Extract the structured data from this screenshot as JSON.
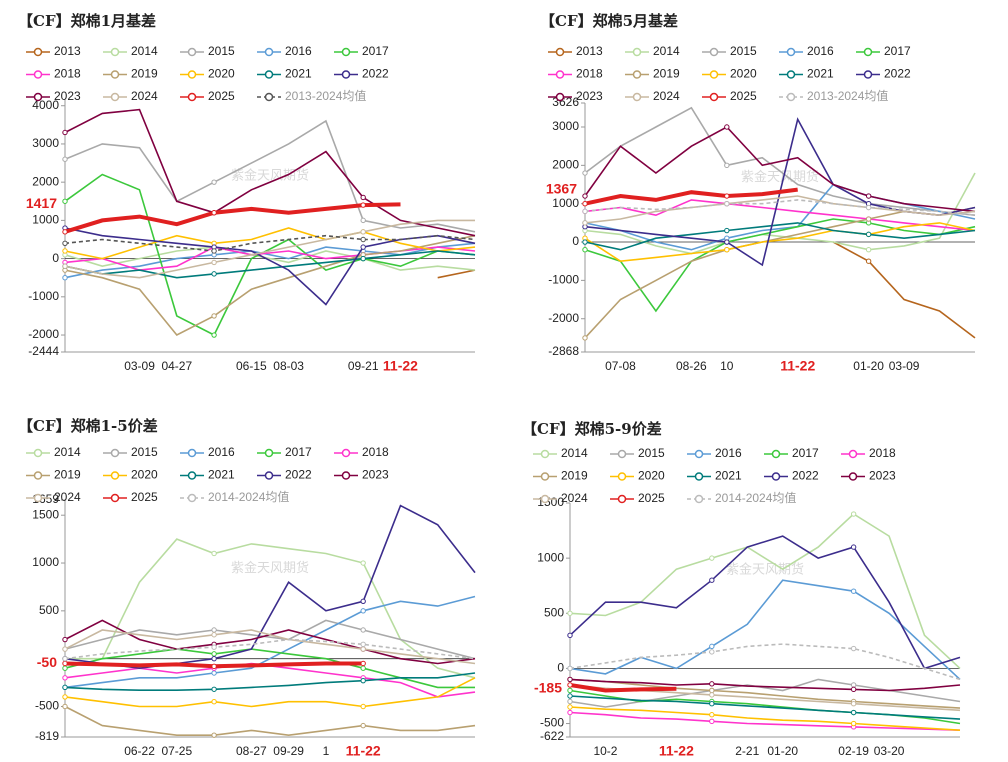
{
  "chart_data": [
    {
      "type": "line",
      "title": "【CF】郑棉1月基差",
      "watermark": "紫金天风期货",
      "current_value": 1417,
      "highlight_category_index": 9,
      "categories": [
        null,
        null,
        "03-09",
        "04-27",
        null,
        "06-15",
        "08-03",
        null,
        "09-21",
        "11-22",
        null,
        null
      ],
      "ylim": [
        -2444,
        4150
      ],
      "yticks": [
        4000,
        3000,
        2000,
        1000,
        0,
        -1000,
        -2000,
        -2444
      ],
      "series": [
        {
          "name": "2013",
          "color": "#b5651d",
          "values": [
            null,
            null,
            null,
            null,
            null,
            null,
            null,
            null,
            null,
            null,
            -500,
            -300
          ]
        },
        {
          "name": "2014",
          "color": "#b8dca0",
          "values": [
            100,
            -200,
            0,
            200,
            300,
            100,
            -100,
            200,
            0,
            -300,
            -200,
            -300
          ]
        },
        {
          "name": "2015",
          "color": "#a9a9a9",
          "values": [
            2600,
            3000,
            2900,
            1500,
            2000,
            2500,
            3000,
            3600,
            1000,
            800,
            900,
            700
          ]
        },
        {
          "name": "2016",
          "color": "#5b9bd5",
          "values": [
            -500,
            -300,
            -200,
            0,
            100,
            200,
            0,
            300,
            200,
            100,
            300,
            400
          ]
        },
        {
          "name": "2017",
          "color": "#3cc83c",
          "values": [
            1500,
            2200,
            1800,
            -1500,
            -2000,
            0,
            500,
            -300,
            0,
            -200,
            200,
            100
          ]
        },
        {
          "name": "2018",
          "color": "#ff33cc",
          "values": [
            -100,
            0,
            -300,
            -200,
            300,
            100,
            200,
            0,
            100,
            200,
            300,
            200
          ]
        },
        {
          "name": "2019",
          "color": "#b8a070",
          "values": [
            -300,
            -500,
            -800,
            -2000,
            -1500,
            -800,
            -500,
            -200,
            100,
            200,
            400,
            600
          ]
        },
        {
          "name": "2020",
          "color": "#ffc000",
          "values": [
            200,
            0,
            300,
            600,
            400,
            500,
            800,
            500,
            700,
            400,
            200,
            300
          ]
        },
        {
          "name": "2021",
          "color": "#007b7b",
          "values": [
            -200,
            -400,
            -300,
            -500,
            -400,
            -300,
            -200,
            -100,
            0,
            100,
            200,
            100
          ]
        },
        {
          "name": "2022",
          "color": "#3c2d8c",
          "values": [
            800,
            600,
            500,
            400,
            300,
            200,
            -300,
            -1200,
            300,
            500,
            600,
            400
          ]
        },
        {
          "name": "2023",
          "color": "#800040",
          "values": [
            3300,
            3800,
            3900,
            1500,
            1200,
            1800,
            2200,
            2800,
            1600,
            1000,
            800,
            600
          ]
        },
        {
          "name": "2024",
          "color": "#c8b8a0",
          "values": [
            -200,
            -400,
            -500,
            -300,
            -100,
            100,
            300,
            500,
            700,
            900,
            1000,
            1000
          ]
        },
        {
          "name": "2025",
          "color": "#e02020",
          "width": 4,
          "values": [
            700,
            1000,
            1100,
            900,
            1200,
            1300,
            1200,
            1300,
            1400,
            1417,
            null,
            null
          ]
        },
        {
          "name": "2013-2024均值",
          "color": "#555555",
          "dashed": true,
          "values": [
            400,
            500,
            400,
            300,
            200,
            400,
            500,
            600,
            500,
            500,
            600,
            500
          ]
        }
      ]
    },
    {
      "type": "line",
      "title": "【CF】郑棉5月基差",
      "watermark": "紫金天风期货",
      "current_value": 1367,
      "highlight_category_index": 6,
      "categories": [
        null,
        "07-08",
        null,
        "08-26",
        "10",
        null,
        "11-22",
        null,
        "01-20",
        "03-09",
        null,
        null
      ],
      "ylim": [
        -2868,
        3626
      ],
      "yticks": [
        3626,
        3000,
        2000,
        1000,
        0,
        -1000,
        -2000,
        -2868
      ],
      "series": [
        {
          "name": "2013",
          "color": "#b5651d",
          "values": [
            null,
            null,
            null,
            null,
            null,
            null,
            null,
            0,
            -500,
            -1500,
            -1800,
            -2500
          ]
        },
        {
          "name": "2014",
          "color": "#b8dca0",
          "values": [
            300,
            200,
            -100,
            -300,
            0,
            200,
            100,
            0,
            -200,
            -100,
            100,
            1800
          ]
        },
        {
          "name": "2015",
          "color": "#a9a9a9",
          "values": [
            1800,
            2500,
            3000,
            3500,
            2000,
            2200,
            1500,
            1200,
            1000,
            900,
            800,
            700
          ]
        },
        {
          "name": "2016",
          "color": "#5b9bd5",
          "values": [
            500,
            300,
            0,
            -200,
            100,
            300,
            400,
            1500,
            1200,
            1000,
            800,
            600
          ]
        },
        {
          "name": "2017",
          "color": "#3cc83c",
          "values": [
            -200,
            -500,
            -1800,
            -500,
            0,
            200,
            400,
            600,
            500,
            300,
            200,
            400
          ]
        },
        {
          "name": "2018",
          "color": "#ff33cc",
          "values": [
            800,
            900,
            700,
            1100,
            1000,
            900,
            800,
            700,
            600,
            500,
            400,
            300
          ]
        },
        {
          "name": "2019",
          "color": "#b8a070",
          "values": [
            -2500,
            -1500,
            -1000,
            -500,
            -200,
            0,
            200,
            400,
            600,
            800,
            700,
            900
          ]
        },
        {
          "name": "2020",
          "color": "#ffc000",
          "values": [
            100,
            -500,
            -400,
            -300,
            -200,
            0,
            100,
            300,
            200,
            400,
            500,
            300
          ]
        },
        {
          "name": "2021",
          "color": "#007b7b",
          "values": [
            0,
            -200,
            100,
            200,
            300,
            400,
            500,
            300,
            200,
            100,
            200,
            300
          ]
        },
        {
          "name": "2022",
          "color": "#3c2d8c",
          "values": [
            400,
            300,
            200,
            100,
            0,
            -600,
            3200,
            1500,
            1000,
            800,
            700,
            900
          ]
        },
        {
          "name": "2023",
          "color": "#800040",
          "values": [
            1200,
            2500,
            1800,
            2500,
            3000,
            2000,
            2200,
            1500,
            1200,
            1000,
            900,
            800
          ]
        },
        {
          "name": "2024",
          "color": "#c8b8a0",
          "values": [
            500,
            600,
            800,
            900,
            1000,
            1100,
            1200,
            1000,
            900,
            800,
            700,
            800
          ]
        },
        {
          "name": "2025",
          "color": "#e02020",
          "width": 4,
          "values": [
            1000,
            1200,
            1100,
            1300,
            1200,
            1250,
            1367,
            null,
            null,
            null,
            null,
            null
          ]
        },
        {
          "name": "2013-2024均值",
          "color": "#bbbbbb",
          "dashed": true,
          "values": [
            800,
            900,
            850,
            900,
            1000,
            1000,
            1100,
            1000,
            900,
            850,
            800,
            700
          ]
        }
      ]
    },
    {
      "type": "line",
      "title": "【CF】郑棉1-5价差",
      "watermark": "紫金天风期货",
      "current_value": -50,
      "highlight_category_index": 8,
      "categories": [
        null,
        null,
        "06-22",
        "07-25",
        null,
        "08-27",
        "09-29",
        "1",
        "11-22",
        null,
        null,
        null
      ],
      "ylim": [
        -819,
        1659
      ],
      "yticks": [
        1659,
        1500,
        1000,
        500,
        -500,
        -819
      ],
      "series": [
        {
          "name": "2014",
          "color": "#b8dca0",
          "values": [
            0,
            0,
            800,
            1250,
            1100,
            1200,
            1150,
            1100,
            1000,
            200,
            -100,
            -200
          ]
        },
        {
          "name": "2015",
          "color": "#a9a9a9",
          "values": [
            100,
            200,
            300,
            250,
            300,
            250,
            200,
            400,
            300,
            200,
            100,
            0
          ]
        },
        {
          "name": "2016",
          "color": "#5b9bd5",
          "values": [
            -300,
            -250,
            -200,
            -200,
            -150,
            -100,
            100,
            300,
            500,
            600,
            550,
            650
          ]
        },
        {
          "name": "2017",
          "color": "#3cc83c",
          "values": [
            -100,
            0,
            50,
            100,
            50,
            100,
            50,
            0,
            -100,
            -200,
            -300,
            -300
          ]
        },
        {
          "name": "2018",
          "color": "#ff33cc",
          "values": [
            -200,
            -150,
            -100,
            -150,
            -100,
            -50,
            -100,
            -150,
            -200,
            -250,
            -400,
            -350
          ]
        },
        {
          "name": "2019",
          "color": "#b8a070",
          "values": [
            -500,
            -700,
            -750,
            -800,
            -800,
            -750,
            -800,
            -750,
            -700,
            -750,
            -750,
            -700
          ]
        },
        {
          "name": "2020",
          "color": "#ffc000",
          "values": [
            -400,
            -450,
            -500,
            -500,
            -450,
            -500,
            -450,
            -450,
            -500,
            -450,
            -400,
            -200
          ]
        },
        {
          "name": "2021",
          "color": "#007b7b",
          "values": [
            -300,
            -320,
            -330,
            -330,
            -320,
            -300,
            -280,
            -250,
            -230,
            -200,
            -200,
            -150
          ]
        },
        {
          "name": "2022",
          "color": "#3c2d8c",
          "values": [
            0,
            -50,
            -100,
            -50,
            0,
            100,
            800,
            500,
            600,
            1600,
            1400,
            900
          ]
        },
        {
          "name": "2023",
          "color": "#800040",
          "values": [
            200,
            400,
            200,
            100,
            150,
            200,
            300,
            200,
            100,
            0,
            -50,
            0
          ]
        },
        {
          "name": "2024",
          "color": "#c8b8a0",
          "values": [
            100,
            300,
            250,
            200,
            250,
            300,
            200,
            150,
            100,
            50,
            0,
            -50
          ]
        },
        {
          "name": "2025",
          "color": "#e02020",
          "width": 4,
          "values": [
            -50,
            -60,
            -70,
            -60,
            -80,
            -70,
            -60,
            -50,
            -50,
            null,
            null,
            null
          ]
        },
        {
          "name": "2014-2024均值",
          "color": "#bbbbbb",
          "dashed": true,
          "values": [
            0,
            50,
            80,
            100,
            120,
            150,
            200,
            180,
            150,
            100,
            50,
            0
          ]
        }
      ]
    },
    {
      "type": "line",
      "title": "【CF】郑棉5-9价差",
      "watermark": "紫金天风期货",
      "current_value": -185,
      "highlight_category_index": 3,
      "categories": [
        null,
        "10-2",
        null,
        "11-22",
        null,
        "2-21",
        "01-20",
        null,
        "02-19",
        "03-20",
        null,
        null
      ],
      "ylim": [
        -622,
        1500
      ],
      "yticks": [
        1500,
        1000,
        500,
        0,
        -500,
        -622
      ],
      "series": [
        {
          "name": "2014",
          "color": "#b8dca0",
          "values": [
            500,
            480,
            600,
            900,
            1000,
            1100,
            900,
            1100,
            1400,
            1200,
            300,
            0
          ]
        },
        {
          "name": "2015",
          "color": "#a9a9a9",
          "values": [
            -300,
            -350,
            -300,
            -250,
            -200,
            -150,
            -200,
            -100,
            -150,
            -200,
            -250,
            -300
          ]
        },
        {
          "name": "2016",
          "color": "#5b9bd5",
          "values": [
            0,
            -50,
            100,
            0,
            200,
            400,
            800,
            750,
            700,
            500,
            200,
            -100
          ]
        },
        {
          "name": "2017",
          "color": "#3cc83c",
          "values": [
            -200,
            -250,
            -300,
            -280,
            -300,
            -320,
            -350,
            -380,
            -400,
            -420,
            -450,
            -500
          ]
        },
        {
          "name": "2018",
          "color": "#ff33cc",
          "values": [
            -400,
            -420,
            -450,
            -460,
            -480,
            -500,
            -510,
            -520,
            -530,
            -540,
            -550,
            -560
          ]
        },
        {
          "name": "2019",
          "color": "#b8a070",
          "values": [
            -100,
            -120,
            -150,
            -180,
            -200,
            -220,
            -250,
            -280,
            -300,
            -320,
            -340,
            -360
          ]
        },
        {
          "name": "2020",
          "color": "#ffc000",
          "values": [
            -350,
            -370,
            -380,
            -400,
            -420,
            -450,
            -470,
            -480,
            -500,
            -520,
            -540,
            -560
          ]
        },
        {
          "name": "2021",
          "color": "#007b7b",
          "values": [
            -250,
            -270,
            -290,
            -300,
            -320,
            -340,
            -360,
            -380,
            -400,
            -420,
            -440,
            -460
          ]
        },
        {
          "name": "2022",
          "color": "#3c2d8c",
          "values": [
            300,
            600,
            600,
            550,
            800,
            1100,
            1200,
            1000,
            1100,
            600,
            0,
            100
          ]
        },
        {
          "name": "2023",
          "color": "#800040",
          "values": [
            -100,
            -120,
            -130,
            -150,
            -140,
            -160,
            -170,
            -180,
            -190,
            -200,
            -180,
            -150
          ]
        },
        {
          "name": "2024",
          "color": "#c8b8a0",
          "values": [
            -150,
            -180,
            -200,
            -220,
            -240,
            -260,
            -280,
            -300,
            -320,
            -340,
            -360,
            -380
          ]
        },
        {
          "name": "2025",
          "color": "#e02020",
          "width": 4,
          "values": [
            -150,
            -200,
            -190,
            -185,
            null,
            null,
            null,
            null,
            null,
            null,
            null,
            null
          ]
        },
        {
          "name": "2014-2024均值",
          "color": "#bbbbbb",
          "dashed": true,
          "values": [
            0,
            50,
            100,
            120,
            150,
            200,
            220,
            200,
            180,
            100,
            0,
            -100
          ]
        }
      ]
    }
  ]
}
